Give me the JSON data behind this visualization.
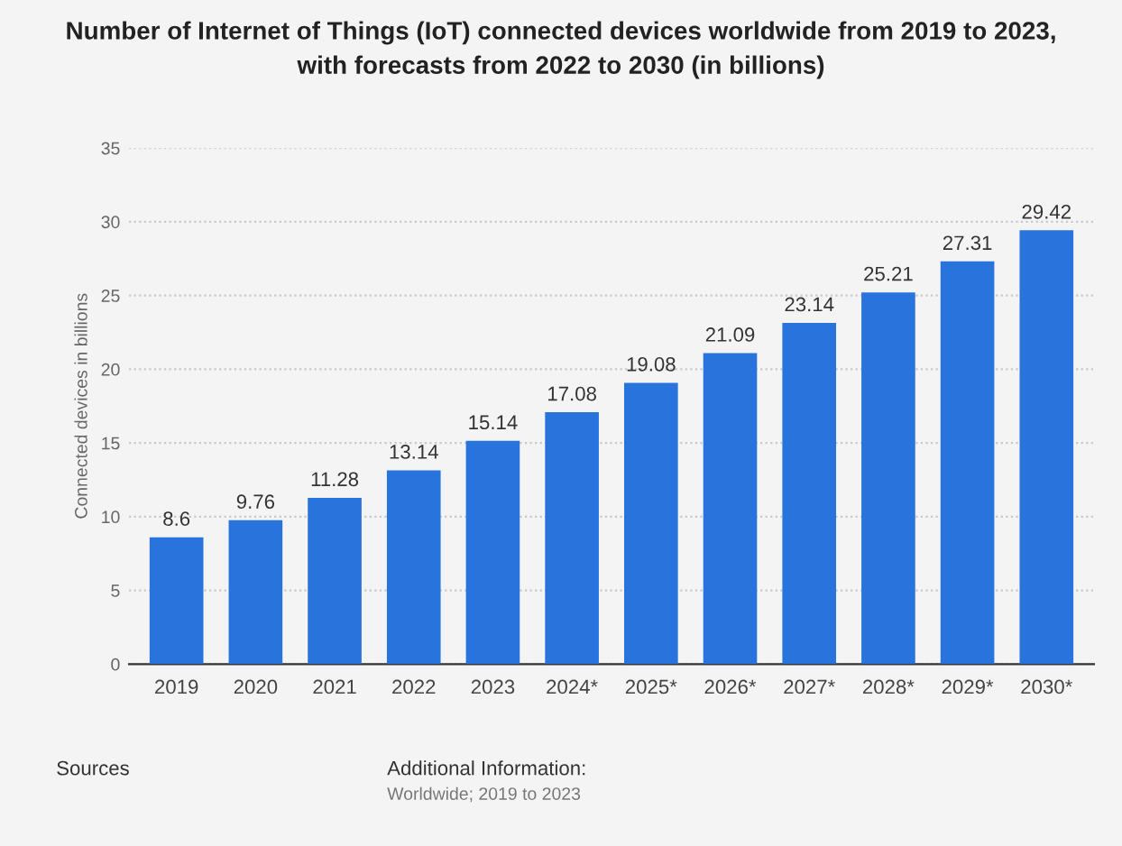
{
  "chart_data": {
    "type": "bar",
    "title": "Number of Internet of Things (IoT) connected devices worldwide from 2019 to 2023,\nwith forecasts from 2022 to 2030 (in billions)",
    "ylabel": "Connected devices in billions",
    "categories": [
      "2019",
      "2020",
      "2021",
      "2022",
      "2023",
      "2024*",
      "2025*",
      "2026*",
      "2027*",
      "2028*",
      "2029*",
      "2030*"
    ],
    "values": [
      8.6,
      9.76,
      11.28,
      13.14,
      15.14,
      17.08,
      19.08,
      21.09,
      23.14,
      25.21,
      27.31,
      29.42
    ],
    "color": "#2874dc",
    "ylim": [
      0,
      35
    ],
    "yticks": [
      0,
      5,
      10,
      15,
      20,
      25,
      30,
      35
    ],
    "grid": "y",
    "data_labels": true,
    "annotations": [
      "Sources",
      "Additional Information:",
      "Worldwide; 2019 to 2023"
    ]
  }
}
